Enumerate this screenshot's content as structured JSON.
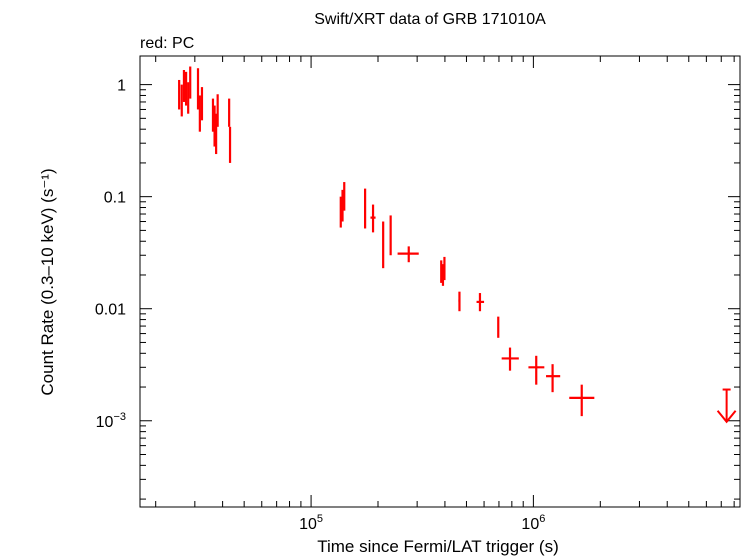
{
  "chart_data": {
    "type": "scatter",
    "title": "Swift/XRT data of GRB 171010A",
    "subtitle": "red: PC",
    "xlabel": "Time since Fermi/LAT trigger (s)",
    "ylabel": "Count Rate (0.3–10 keV) (s⁻¹)",
    "x_scale": "log",
    "y_scale": "log",
    "xlim": [
      17000,
      8500000
    ],
    "ylim": [
      0.00017,
      1.8
    ],
    "x_ticks": [
      {
        "value": 100000,
        "label": "10",
        "exp": "5"
      },
      {
        "value": 1000000,
        "label": "10",
        "exp": "6"
      }
    ],
    "y_ticks": [
      {
        "value": 1,
        "label": "1",
        "exp": ""
      },
      {
        "value": 0.1,
        "label": "0.1",
        "exp": ""
      },
      {
        "value": 0.01,
        "label": "0.01",
        "exp": ""
      },
      {
        "value": 0.001,
        "label": "10",
        "exp": "−3"
      }
    ],
    "grid": false,
    "series": [
      {
        "color": "#ff0000",
        "points": [
          {
            "x": 25500,
            "xlo": 25300,
            "xhi": 25700,
            "y": 0.85,
            "ylo": 0.6,
            "yhi": 1.1
          },
          {
            "x": 26200,
            "xlo": 26000,
            "xhi": 26400,
            "y": 0.75,
            "ylo": 0.52,
            "yhi": 1.0
          },
          {
            "x": 26800,
            "xlo": 26600,
            "xhi": 27000,
            "y": 1.0,
            "ylo": 0.7,
            "yhi": 1.35
          },
          {
            "x": 27400,
            "xlo": 27200,
            "xhi": 27600,
            "y": 0.95,
            "ylo": 0.65,
            "yhi": 1.3
          },
          {
            "x": 28000,
            "xlo": 27800,
            "xhi": 28200,
            "y": 0.8,
            "ylo": 0.55,
            "yhi": 1.05
          },
          {
            "x": 28600,
            "xlo": 28400,
            "xhi": 28800,
            "y": 1.1,
            "ylo": 0.75,
            "yhi": 1.45
          },
          {
            "x": 31000,
            "xlo": 30800,
            "xhi": 31200,
            "y": 0.9,
            "ylo": 0.6,
            "yhi": 1.4
          },
          {
            "x": 31600,
            "xlo": 31400,
            "xhi": 31800,
            "y": 0.55,
            "ylo": 0.38,
            "yhi": 0.8
          },
          {
            "x": 32300,
            "xlo": 32100,
            "xhi": 32500,
            "y": 0.7,
            "ylo": 0.48,
            "yhi": 0.95
          },
          {
            "x": 36200,
            "xlo": 36000,
            "xhi": 36400,
            "y": 0.55,
            "ylo": 0.38,
            "yhi": 0.75
          },
          {
            "x": 36800,
            "xlo": 36600,
            "xhi": 37000,
            "y": 0.45,
            "ylo": 0.28,
            "yhi": 0.65
          },
          {
            "x": 37400,
            "xlo": 37200,
            "xhi": 37600,
            "y": 0.38,
            "ylo": 0.24,
            "yhi": 0.55
          },
          {
            "x": 38000,
            "xlo": 37800,
            "xhi": 38200,
            "y": 0.6,
            "ylo": 0.42,
            "yhi": 0.82
          },
          {
            "x": 42800,
            "xlo": 42600,
            "xhi": 43000,
            "y": 0.6,
            "ylo": 0.42,
            "yhi": 0.75
          },
          {
            "x": 43200,
            "xlo": 43000,
            "xhi": 43400,
            "y": 0.3,
            "ylo": 0.2,
            "yhi": 0.42
          },
          {
            "x": 136000,
            "xlo": 135500,
            "xhi": 136500,
            "y": 0.075,
            "ylo": 0.053,
            "yhi": 0.1
          },
          {
            "x": 138500,
            "xlo": 138000,
            "xhi": 139000,
            "y": 0.085,
            "ylo": 0.06,
            "yhi": 0.115
          },
          {
            "x": 141000,
            "xlo": 140500,
            "xhi": 141500,
            "y": 0.1,
            "ylo": 0.075,
            "yhi": 0.135
          },
          {
            "x": 175000,
            "xlo": 174000,
            "xhi": 176000,
            "y": 0.085,
            "ylo": 0.052,
            "yhi": 0.118
          },
          {
            "x": 190000,
            "xlo": 185000,
            "xhi": 195000,
            "y": 0.065,
            "ylo": 0.048,
            "yhi": 0.085
          },
          {
            "x": 211000,
            "xlo": 210000,
            "xhi": 212000,
            "y": 0.04,
            "ylo": 0.023,
            "yhi": 0.06
          },
          {
            "x": 228000,
            "xlo": 227000,
            "xhi": 229000,
            "y": 0.048,
            "ylo": 0.03,
            "yhi": 0.068
          },
          {
            "x": 275000,
            "xlo": 245000,
            "xhi": 305000,
            "y": 0.031,
            "ylo": 0.026,
            "yhi": 0.036
          },
          {
            "x": 385000,
            "xlo": 383000,
            "xhi": 387000,
            "y": 0.022,
            "ylo": 0.017,
            "yhi": 0.027
          },
          {
            "x": 392000,
            "xlo": 390000,
            "xhi": 394000,
            "y": 0.02,
            "ylo": 0.016,
            "yhi": 0.025
          },
          {
            "x": 398000,
            "xlo": 396000,
            "xhi": 400000,
            "y": 0.023,
            "ylo": 0.018,
            "yhi": 0.029
          },
          {
            "x": 465000,
            "xlo": 460000,
            "xhi": 470000,
            "y": 0.0118,
            "ylo": 0.0095,
            "yhi": 0.0142
          },
          {
            "x": 575000,
            "xlo": 555000,
            "xhi": 600000,
            "y": 0.0115,
            "ylo": 0.0095,
            "yhi": 0.0138
          },
          {
            "x": 695000,
            "xlo": 690000,
            "xhi": 700000,
            "y": 0.0069,
            "ylo": 0.0055,
            "yhi": 0.0085
          },
          {
            "x": 785000,
            "xlo": 720000,
            "xhi": 860000,
            "y": 0.0036,
            "ylo": 0.0028,
            "yhi": 0.0045
          },
          {
            "x": 1030000,
            "xlo": 950000,
            "xhi": 1120000,
            "y": 0.003,
            "ylo": 0.0021,
            "yhi": 0.0038
          },
          {
            "x": 1220000,
            "xlo": 1140000,
            "xhi": 1320000,
            "y": 0.0025,
            "ylo": 0.0018,
            "yhi": 0.0032
          },
          {
            "x": 1650000,
            "xlo": 1450000,
            "xhi": 1880000,
            "y": 0.0016,
            "ylo": 0.0011,
            "yhi": 0.0021
          }
        ],
        "upper_limits": [
          {
            "x": 7400000,
            "y": 0.0019,
            "y_arrow_end": 0.00098
          }
        ]
      }
    ]
  }
}
